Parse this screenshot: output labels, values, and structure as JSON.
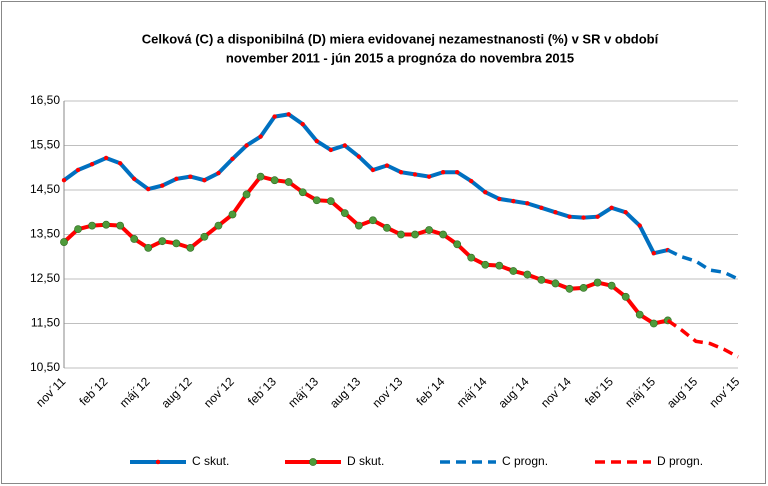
{
  "chart_data": {
    "type": "line",
    "title": [
      "Celková (C) a disponibilná (D) miera evidovanej nezamestnanosti (%) v SR v období",
      "november 2011 - jún 2015 a prognóza do novembra 2015"
    ],
    "categories": [
      "nov´11",
      null,
      null,
      "feb´12",
      null,
      null,
      "máj´12",
      null,
      null,
      "aug´12",
      null,
      null,
      "nov´12",
      null,
      null,
      "feb´13",
      null,
      null,
      "máj´13",
      null,
      null,
      "aug´13",
      null,
      null,
      "nov´13",
      null,
      null,
      "feb´14",
      null,
      null,
      "máj´14",
      null,
      null,
      "aug´14",
      null,
      null,
      "nov´14",
      null,
      null,
      "feb´15",
      null,
      null,
      "máj´15",
      null,
      null,
      "aug´15",
      null,
      null,
      "nov´15"
    ],
    "ylim": [
      10.5,
      16.5
    ],
    "yticks": [
      {
        "value": 10.5,
        "label": "10,50"
      },
      {
        "value": 11.5,
        "label": "11,50"
      },
      {
        "value": 12.5,
        "label": "12,50"
      },
      {
        "value": 13.5,
        "label": "13,50"
      },
      {
        "value": 14.5,
        "label": "14,50"
      },
      {
        "value": 15.5,
        "label": "15,50"
      },
      {
        "value": 16.5,
        "label": "16,50"
      }
    ],
    "grid": true,
    "legend": "bottom",
    "series": [
      {
        "name": "C skut.",
        "color": "#0070c0",
        "line_style": "solid",
        "marker_color": "#ff0000",
        "values": [
          14.72,
          14.95,
          15.08,
          15.22,
          15.1,
          14.75,
          14.52,
          14.6,
          14.75,
          14.8,
          14.72,
          14.88,
          15.2,
          15.5,
          15.7,
          16.15,
          16.2,
          15.98,
          15.6,
          15.4,
          15.5,
          15.25,
          14.95,
          15.05,
          14.9,
          14.85,
          14.8,
          14.9,
          14.9,
          14.7,
          14.45,
          14.3,
          14.25,
          14.2,
          14.1,
          14.0,
          13.9,
          13.88,
          13.9,
          14.1,
          14.0,
          13.7,
          13.08,
          13.15,
          null,
          null,
          null,
          null,
          null
        ]
      },
      {
        "name": "D skut.",
        "color": "#ff0000",
        "line_style": "solid",
        "marker_color": "#4e9a3a",
        "values": [
          13.33,
          13.62,
          13.7,
          13.72,
          13.7,
          13.4,
          13.2,
          13.35,
          13.3,
          13.2,
          13.45,
          13.7,
          13.95,
          14.4,
          14.8,
          14.72,
          14.68,
          14.45,
          14.27,
          14.25,
          13.98,
          13.7,
          13.82,
          13.65,
          13.5,
          13.5,
          13.6,
          13.5,
          13.28,
          12.98,
          12.82,
          12.8,
          12.68,
          12.6,
          12.48,
          12.4,
          12.28,
          12.3,
          12.42,
          12.35,
          12.1,
          11.7,
          11.5,
          11.57,
          null,
          null,
          null,
          null,
          null
        ]
      },
      {
        "name": "C progn.",
        "color": "#0070c0",
        "line_style": "dashed",
        "values": [
          null,
          null,
          null,
          null,
          null,
          null,
          null,
          null,
          null,
          null,
          null,
          null,
          null,
          null,
          null,
          null,
          null,
          null,
          null,
          null,
          null,
          null,
          null,
          null,
          null,
          null,
          null,
          null,
          null,
          null,
          null,
          null,
          null,
          null,
          null,
          null,
          null,
          null,
          null,
          null,
          null,
          null,
          null,
          13.15,
          13.0,
          12.9,
          12.7,
          12.65,
          12.5
        ]
      },
      {
        "name": "D progn.",
        "color": "#ff0000",
        "line_style": "dashed",
        "values": [
          null,
          null,
          null,
          null,
          null,
          null,
          null,
          null,
          null,
          null,
          null,
          null,
          null,
          null,
          null,
          null,
          null,
          null,
          null,
          null,
          null,
          null,
          null,
          null,
          null,
          null,
          null,
          null,
          null,
          null,
          null,
          null,
          null,
          null,
          null,
          null,
          null,
          null,
          null,
          null,
          null,
          null,
          null,
          11.57,
          11.35,
          11.1,
          11.05,
          10.92,
          10.75
        ]
      }
    ]
  }
}
